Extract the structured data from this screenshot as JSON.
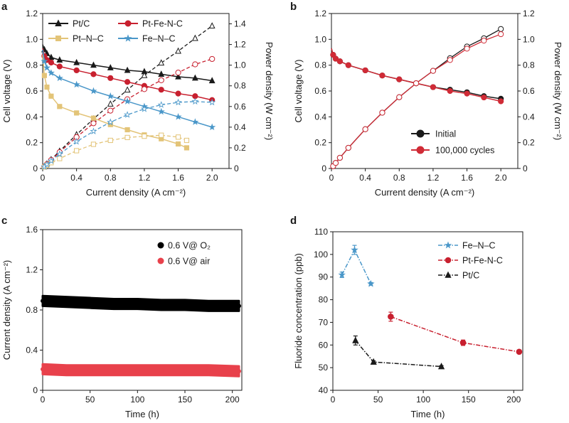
{
  "colors": {
    "pt_c": "#1a1a1a",
    "pt_fe_n_c": "#c8202f",
    "pt_n_c": "#e3c478",
    "fe_n_c": "#4a97c9",
    "initial": "#1a1a1a",
    "cycles": "#d02b36",
    "o2": "#000000",
    "air": "#e8414b"
  },
  "chart_data": [
    {
      "panel": "a",
      "type": "line",
      "xlabel": "Current density (A cm⁻²)",
      "ylabel": "Cell voltage (V)",
      "y2label": "Power density (W cm⁻²)",
      "xlim": [
        0,
        2.2
      ],
      "ylim": [
        0,
        1.2
      ],
      "y2lim": [
        0,
        1.5
      ],
      "xticks": [
        "0",
        "0.4",
        "0.8",
        "1.2",
        "1.6",
        "2.0"
      ],
      "yticks": [
        "0",
        "0.2",
        "0.4",
        "0.6",
        "0.8",
        "1.0",
        "1.2"
      ],
      "y2ticks": [
        "0",
        "0.2",
        "0.4",
        "0.6",
        "0.8",
        "1.0",
        "1.2",
        "1.4"
      ],
      "legend_position": "top",
      "series": [
        {
          "name": "Pt/C",
          "color_key": "pt_c",
          "marker": "triangle",
          "x": [
            0.0,
            0.02,
            0.05,
            0.1,
            0.2,
            0.4,
            0.6,
            0.8,
            1.0,
            1.2,
            1.4,
            1.6,
            1.8,
            2.0
          ],
          "voltage": [
            0.96,
            0.92,
            0.89,
            0.86,
            0.84,
            0.82,
            0.8,
            0.78,
            0.76,
            0.75,
            0.73,
            0.71,
            0.7,
            0.68
          ],
          "power": [
            0.0,
            0.02,
            0.045,
            0.086,
            0.168,
            0.328,
            0.48,
            0.624,
            0.76,
            0.9,
            1.022,
            1.136,
            1.26,
            1.38
          ]
        },
        {
          "name": "Pt-Fe-N-C",
          "color_key": "pt_fe_n_c",
          "marker": "circle",
          "x": [
            0.0,
            0.02,
            0.05,
            0.1,
            0.2,
            0.4,
            0.6,
            0.8,
            1.0,
            1.2,
            1.4,
            1.6,
            1.8,
            2.0
          ],
          "voltage": [
            0.93,
            0.87,
            0.84,
            0.82,
            0.79,
            0.76,
            0.73,
            0.7,
            0.67,
            0.64,
            0.61,
            0.58,
            0.56,
            0.53
          ],
          "power": [
            0.0,
            0.017,
            0.042,
            0.082,
            0.158,
            0.304,
            0.438,
            0.56,
            0.67,
            0.768,
            0.854,
            0.928,
            1.008,
            1.06
          ]
        },
        {
          "name": "Pt–N–C",
          "color_key": "pt_n_c",
          "marker": "square",
          "x": [
            0.0,
            0.02,
            0.05,
            0.1,
            0.2,
            0.4,
            0.6,
            0.8,
            1.0,
            1.2,
            1.4,
            1.6,
            1.7
          ],
          "voltage": [
            0.88,
            0.72,
            0.63,
            0.56,
            0.48,
            0.43,
            0.39,
            0.34,
            0.3,
            0.26,
            0.23,
            0.19,
            0.16
          ],
          "power": [
            0.0,
            0.014,
            0.032,
            0.056,
            0.096,
            0.172,
            0.234,
            0.272,
            0.3,
            0.312,
            0.322,
            0.304,
            0.272
          ]
        },
        {
          "name": "Fe–N–C",
          "color_key": "fe_n_c",
          "marker": "star",
          "x": [
            0.0,
            0.02,
            0.05,
            0.1,
            0.2,
            0.4,
            0.6,
            0.8,
            1.0,
            1.2,
            1.4,
            1.6,
            1.8,
            2.0
          ],
          "voltage": [
            0.92,
            0.83,
            0.78,
            0.74,
            0.7,
            0.65,
            0.6,
            0.56,
            0.52,
            0.48,
            0.44,
            0.4,
            0.36,
            0.32
          ],
          "power": [
            0.0,
            0.017,
            0.039,
            0.074,
            0.14,
            0.26,
            0.36,
            0.448,
            0.52,
            0.576,
            0.616,
            0.64,
            0.648,
            0.64
          ]
        }
      ]
    },
    {
      "panel": "b",
      "type": "line",
      "xlabel": "Current density (A cm⁻²)",
      "ylabel": "Cell voltage (V)",
      "y2label": "Power density (W cm⁻²)",
      "xlim": [
        0,
        2.2
      ],
      "ylim": [
        0,
        1.2
      ],
      "y2lim": [
        0,
        1.2
      ],
      "xticks": [
        "0",
        "0.4",
        "0.8",
        "1.2",
        "1.6",
        "2.0"
      ],
      "yticks": [
        "0",
        "0.2",
        "0.4",
        "0.6",
        "0.8",
        "1.0",
        "1.2"
      ],
      "y2ticks": [
        "0",
        "0.2",
        "0.4",
        "0.6",
        "0.8",
        "1.0",
        "1.2"
      ],
      "legend_position": "bottom-right",
      "series": [
        {
          "name": "Initial",
          "color_key": "initial",
          "marker": "circle",
          "x": [
            0.0,
            0.02,
            0.05,
            0.1,
            0.2,
            0.4,
            0.6,
            0.8,
            1.0,
            1.2,
            1.4,
            1.6,
            1.8,
            2.0
          ],
          "voltage": [
            0.93,
            0.88,
            0.85,
            0.83,
            0.8,
            0.76,
            0.72,
            0.69,
            0.66,
            0.63,
            0.61,
            0.59,
            0.56,
            0.54
          ],
          "power": [
            0.0,
            0.018,
            0.043,
            0.083,
            0.16,
            0.304,
            0.432,
            0.552,
            0.66,
            0.756,
            0.854,
            0.944,
            1.008,
            1.08
          ]
        },
        {
          "name": "100,000 cycles",
          "color_key": "cycles",
          "marker": "circle",
          "x": [
            0.0,
            0.02,
            0.05,
            0.1,
            0.2,
            0.4,
            0.6,
            0.8,
            1.0,
            1.2,
            1.4,
            1.6,
            1.8,
            2.0
          ],
          "voltage": [
            0.93,
            0.88,
            0.85,
            0.83,
            0.8,
            0.76,
            0.72,
            0.69,
            0.66,
            0.63,
            0.6,
            0.58,
            0.55,
            0.52
          ],
          "power": [
            0.0,
            0.018,
            0.043,
            0.083,
            0.16,
            0.304,
            0.432,
            0.552,
            0.66,
            0.756,
            0.84,
            0.928,
            0.99,
            1.04
          ]
        }
      ]
    },
    {
      "panel": "c",
      "type": "scatter",
      "xlabel": "Time (h)",
      "ylabel": "Current density (A cm⁻²)",
      "xlim": [
        0,
        210
      ],
      "ylim": [
        0,
        1.6
      ],
      "xticks": [
        "0",
        "50",
        "100",
        "150",
        "200"
      ],
      "yticks": [
        "0",
        "0.4",
        "0.8",
        "1.2",
        "1.6"
      ],
      "legend_position": "top-right",
      "series": [
        {
          "name": "0.6 V@ O₂",
          "color_key": "o2",
          "x": [
            0,
            25,
            50,
            75,
            100,
            125,
            150,
            175,
            207
          ],
          "y": [
            0.89,
            0.88,
            0.87,
            0.86,
            0.86,
            0.85,
            0.85,
            0.84,
            0.84
          ]
        },
        {
          "name": "0.6 V@ air",
          "color_key": "air",
          "x": [
            0,
            25,
            50,
            75,
            100,
            125,
            150,
            175,
            207
          ],
          "y": [
            0.21,
            0.2,
            0.2,
            0.2,
            0.2,
            0.2,
            0.2,
            0.2,
            0.19
          ]
        }
      ]
    },
    {
      "panel": "d",
      "type": "line",
      "xlabel": "Time (h)",
      "ylabel": "Fluoride concentration (ppb)",
      "xlim": [
        0,
        210
      ],
      "ylim": [
        40,
        110
      ],
      "xticks": [
        "0",
        "50",
        "100",
        "150",
        "200"
      ],
      "yticks": [
        "40",
        "50",
        "60",
        "70",
        "80",
        "90",
        "100",
        "110"
      ],
      "legend_position": "top-right",
      "series": [
        {
          "name": "Fe–N–C",
          "color_key": "fe_n_c",
          "marker": "star",
          "x": [
            10,
            24,
            42
          ],
          "y": [
            91,
            102,
            87
          ],
          "err": [
            1.2,
            2.0,
            0.6
          ]
        },
        {
          "name": "Pt-Fe-N-C",
          "color_key": "pt_fe_n_c",
          "marker": "circle",
          "x": [
            64,
            144,
            206
          ],
          "y": [
            72.5,
            61,
            57
          ],
          "err": [
            2.0,
            1.2,
            0.5
          ]
        },
        {
          "name": "Pt/C",
          "color_key": "pt_c",
          "marker": "triangle",
          "x": [
            25,
            45,
            120
          ],
          "y": [
            62,
            52.5,
            50.5
          ],
          "err": [
            2.0,
            0.5,
            0.4
          ]
        }
      ]
    }
  ]
}
